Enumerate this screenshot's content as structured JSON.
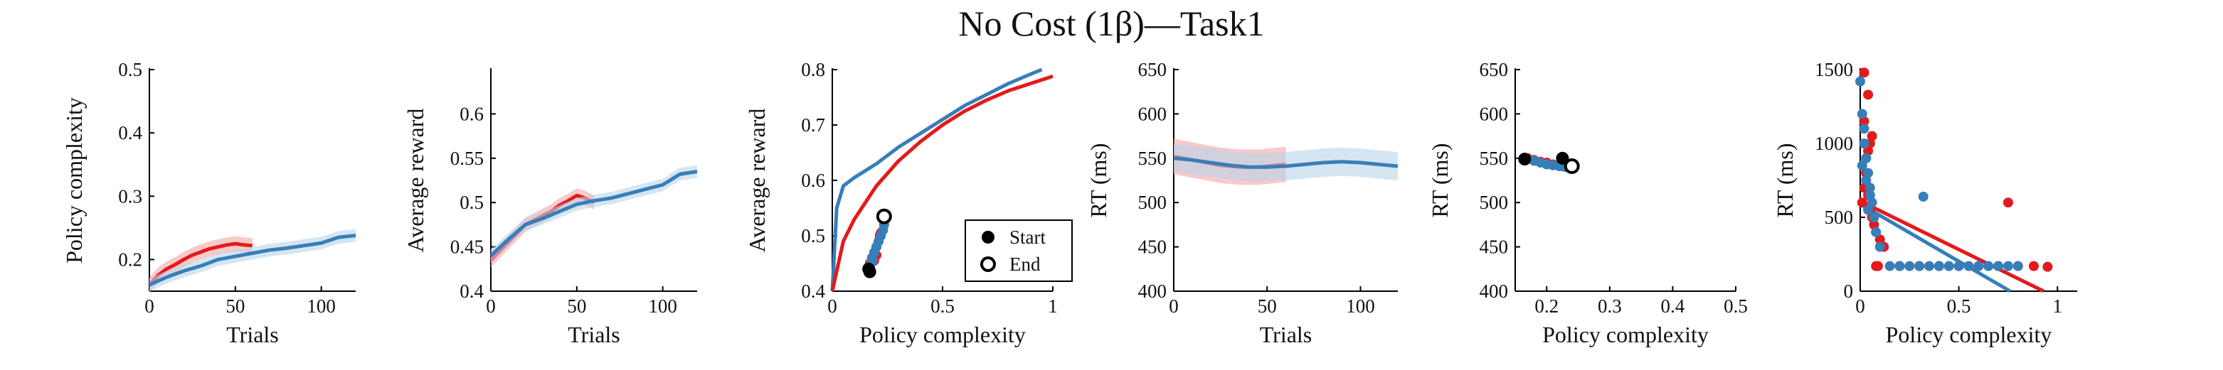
{
  "figure": {
    "title": "No Cost (1β)—Task1"
  },
  "colors": {
    "red": "#e31a1c",
    "blue": "#377eb8",
    "red_band": "#f4a6a6",
    "blue_band": "#b9d3ea",
    "axis": "#000000"
  },
  "chart_data": [
    {
      "type": "line",
      "xlabel": "Trials",
      "ylabel": "Policy complexity",
      "xlim": [
        0,
        120
      ],
      "ylim": [
        0.15,
        0.5
      ],
      "xticks": [
        "0",
        "50",
        "100"
      ],
      "xtick_values": [
        0,
        50,
        100
      ],
      "yticks": [
        "0.2",
        "0.3",
        "0.4",
        "0.5"
      ],
      "ytick_values": [
        0.2,
        0.3,
        0.4,
        0.5
      ],
      "series": [
        {
          "color": "red",
          "band": 0.012,
          "x": [
            0,
            5,
            10,
            15,
            20,
            25,
            30,
            35,
            40,
            45,
            50,
            55,
            60
          ],
          "y": [
            0.16,
            0.175,
            0.185,
            0.192,
            0.2,
            0.207,
            0.212,
            0.217,
            0.22,
            0.223,
            0.225,
            0.223,
            0.222
          ]
        },
        {
          "color": "blue",
          "band": 0.01,
          "x": [
            0,
            10,
            20,
            30,
            40,
            50,
            60,
            70,
            80,
            90,
            100,
            110,
            120
          ],
          "y": [
            0.16,
            0.172,
            0.182,
            0.19,
            0.2,
            0.205,
            0.21,
            0.215,
            0.218,
            0.222,
            0.226,
            0.235,
            0.238
          ]
        }
      ]
    },
    {
      "type": "line",
      "xlabel": "Trials",
      "ylabel": "Average reward",
      "xlim": [
        0,
        120
      ],
      "ylim": [
        0.4,
        0.65
      ],
      "xticks": [
        "0",
        "50",
        "100"
      ],
      "xtick_values": [
        0,
        50,
        100
      ],
      "yticks": [
        "0.4",
        "0.45",
        "0.5",
        "0.55",
        "0.6"
      ],
      "ytick_values": [
        0.4,
        0.45,
        0.5,
        0.55,
        0.6
      ],
      "series": [
        {
          "color": "red",
          "band": 0.008,
          "x": [
            0,
            5,
            10,
            15,
            20,
            25,
            30,
            35,
            40,
            45,
            50,
            55,
            60
          ],
          "y": [
            0.435,
            0.445,
            0.455,
            0.465,
            0.475,
            0.48,
            0.485,
            0.49,
            0.497,
            0.502,
            0.508,
            0.505,
            0.5
          ]
        },
        {
          "color": "blue",
          "band": 0.007,
          "x": [
            0,
            10,
            20,
            30,
            40,
            50,
            60,
            70,
            80,
            90,
            100,
            110,
            120
          ],
          "y": [
            0.44,
            0.458,
            0.475,
            0.482,
            0.49,
            0.498,
            0.502,
            0.505,
            0.51,
            0.515,
            0.52,
            0.532,
            0.535
          ]
        }
      ]
    },
    {
      "type": "scatter",
      "xlabel": "Policy complexity",
      "ylabel": "Average reward",
      "xlim": [
        0,
        1
      ],
      "ylim": [
        0.4,
        0.8
      ],
      "xticks": [
        "0",
        "0.5",
        "1"
      ],
      "xtick_values": [
        0,
        0.5,
        1
      ],
      "yticks": [
        "0.4",
        "0.5",
        "0.6",
        "0.7",
        "0.8"
      ],
      "ytick_values": [
        0.4,
        0.5,
        0.6,
        0.7,
        0.8
      ],
      "legend": {
        "position": "lower-right",
        "items": [
          {
            "label": "Start",
            "marker": "filled"
          },
          {
            "label": "End",
            "marker": "open"
          }
        ]
      },
      "curves": [
        {
          "color": "blue",
          "x": [
            0.0,
            0.02,
            0.05,
            0.1,
            0.2,
            0.3,
            0.4,
            0.5,
            0.6,
            0.7,
            0.8,
            0.9,
            0.95
          ],
          "y": [
            0.4,
            0.55,
            0.59,
            0.605,
            0.63,
            0.66,
            0.685,
            0.71,
            0.735,
            0.755,
            0.775,
            0.792,
            0.8
          ]
        },
        {
          "color": "red",
          "x": [
            0.0,
            0.05,
            0.1,
            0.15,
            0.2,
            0.3,
            0.4,
            0.5,
            0.6,
            0.7,
            0.8,
            0.9,
            1.0
          ],
          "y": [
            0.4,
            0.49,
            0.53,
            0.56,
            0.59,
            0.635,
            0.67,
            0.7,
            0.725,
            0.745,
            0.762,
            0.775,
            0.788
          ]
        }
      ],
      "points": [
        {
          "color": "red",
          "x": [
            0.17,
            0.18,
            0.19,
            0.2,
            0.21,
            0.215,
            0.22,
            0.2,
            0.19
          ],
          "y": [
            0.45,
            0.46,
            0.47,
            0.48,
            0.49,
            0.5,
            0.505,
            0.465,
            0.455
          ]
        },
        {
          "color": "blue",
          "x": [
            0.17,
            0.175,
            0.18,
            0.19,
            0.2,
            0.21,
            0.22,
            0.23,
            0.235,
            0.185
          ],
          "y": [
            0.44,
            0.45,
            0.46,
            0.47,
            0.48,
            0.49,
            0.5,
            0.51,
            0.52,
            0.455
          ]
        }
      ],
      "start": {
        "x": [
          0.165,
          0.17
        ],
        "y": [
          0.44,
          0.435
        ]
      },
      "end": {
        "x": [
          0.235
        ],
        "y": [
          0.535
        ]
      }
    },
    {
      "type": "line",
      "xlabel": "Trials",
      "ylabel": "RT (ms)",
      "xlim": [
        0,
        120
      ],
      "ylim": [
        400,
        650
      ],
      "xticks": [
        "0",
        "50",
        "100"
      ],
      "xtick_values": [
        0,
        50,
        100
      ],
      "yticks": [
        "400",
        "450",
        "500",
        "550",
        "600",
        "650"
      ],
      "ytick_values": [
        400,
        450,
        500,
        550,
        600,
        650
      ],
      "series": [
        {
          "color": "red",
          "band": 20,
          "x": [
            0,
            5,
            10,
            15,
            20,
            25,
            30,
            35,
            40,
            45,
            50,
            55,
            60
          ],
          "y": [
            552,
            550,
            548,
            546,
            544,
            542,
            541,
            540,
            540,
            540,
            541,
            542,
            543
          ]
        },
        {
          "color": "blue",
          "band": 16,
          "x": [
            0,
            10,
            20,
            30,
            40,
            50,
            60,
            70,
            80,
            90,
            100,
            110,
            120
          ],
          "y": [
            550,
            548,
            545,
            542,
            540,
            540,
            541,
            543,
            545,
            546,
            545,
            543,
            541
          ]
        }
      ]
    },
    {
      "type": "scatter",
      "xlabel": "Policy complexity",
      "ylabel": "RT (ms)",
      "xlim": [
        0.15,
        0.5
      ],
      "ylim": [
        400,
        650
      ],
      "xticks": [
        "0.2",
        "0.3",
        "0.4",
        "0.5"
      ],
      "xtick_values": [
        0.2,
        0.3,
        0.4,
        0.5
      ],
      "yticks": [
        "400",
        "450",
        "500",
        "550",
        "600",
        "650"
      ],
      "ytick_values": [
        400,
        450,
        500,
        550,
        600,
        650
      ],
      "points": [
        {
          "color": "red",
          "x": [
            0.17,
            0.18,
            0.19,
            0.2,
            0.21,
            0.22,
            0.225
          ],
          "y": [
            550,
            548,
            546,
            545,
            543,
            542,
            541
          ]
        },
        {
          "color": "blue",
          "x": [
            0.17,
            0.18,
            0.19,
            0.2,
            0.21,
            0.22,
            0.23,
            0.235
          ],
          "y": [
            549,
            547,
            545,
            543,
            542,
            541,
            540,
            542
          ]
        }
      ],
      "start": {
        "x": [
          0.165,
          0.225
        ],
        "y": [
          549,
          550
        ]
      },
      "end": {
        "x": [
          0.24
        ],
        "y": [
          541
        ]
      }
    },
    {
      "type": "scatter",
      "xlabel": "Policy complexity",
      "ylabel": "RT (ms)",
      "xlim": [
        0,
        1.1
      ],
      "ylim": [
        0,
        1500
      ],
      "xticks": [
        "0",
        "0.5",
        "1"
      ],
      "xtick_values": [
        0,
        0.5,
        1
      ],
      "yticks": [
        "0",
        "500",
        "1000",
        "1500"
      ],
      "ytick_values": [
        0,
        500,
        1000,
        1500
      ],
      "points": [
        {
          "color": "red",
          "x": [
            0.01,
            0.02,
            0.03,
            0.04,
            0.05,
            0.06,
            0.07,
            0.08,
            0.1,
            0.12,
            0.03,
            0.05,
            0.02,
            0.06,
            0.04,
            0.08,
            0.09,
            0.2,
            0.3,
            0.4,
            0.5,
            0.6,
            0.7,
            0.8,
            0.88,
            0.95,
            0.75,
            0.02,
            0.04
          ],
          "y": [
            600,
            700,
            800,
            650,
            550,
            500,
            450,
            400,
            350,
            300,
            900,
            1000,
            1150,
            1050,
            950,
            170,
            170,
            170,
            170,
            170,
            170,
            170,
            170,
            170,
            170,
            165,
            600,
            1480,
            1330
          ]
        },
        {
          "color": "blue",
          "x": [
            0.0,
            0.01,
            0.02,
            0.03,
            0.04,
            0.05,
            0.06,
            0.07,
            0.08,
            0.1,
            0.15,
            0.2,
            0.25,
            0.3,
            0.35,
            0.4,
            0.45,
            0.5,
            0.55,
            0.6,
            0.65,
            0.7,
            0.75,
            0.8,
            0.32,
            0.02,
            0.01,
            0.03,
            0.05,
            0.04
          ],
          "y": [
            1420,
            1200,
            1000,
            900,
            800,
            700,
            600,
            500,
            400,
            300,
            170,
            170,
            170,
            170,
            170,
            170,
            170,
            170,
            170,
            170,
            170,
            170,
            170,
            170,
            640,
            1100,
            850,
            750,
            650,
            550
          ]
        }
      ],
      "fit_lines": [
        {
          "color": "red",
          "x": [
            0,
            0.93
          ],
          "y": [
            610,
            0
          ]
        },
        {
          "color": "blue",
          "x": [
            0,
            0.76
          ],
          "y": [
            590,
            0
          ]
        }
      ]
    }
  ]
}
